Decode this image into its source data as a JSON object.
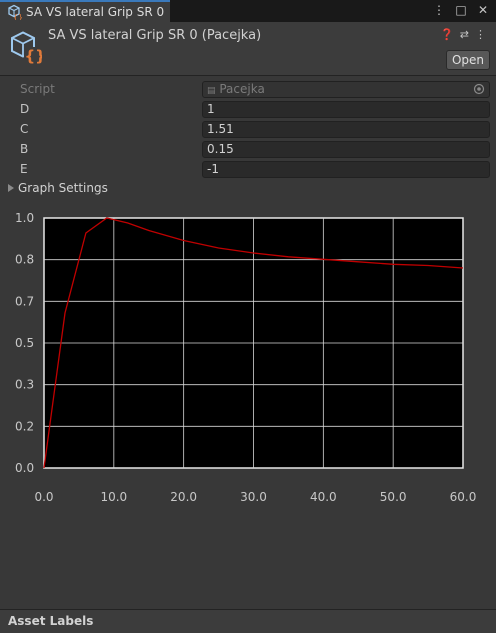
{
  "tab": {
    "title": "SA VS lateral Grip SR 0"
  },
  "header": {
    "title": "SA VS lateral Grip SR 0 (Pacejka)",
    "open_label": "Open"
  },
  "properties": [
    {
      "label": "Script",
      "value": "Pacejka",
      "readonly": true
    },
    {
      "label": "D",
      "value": "1"
    },
    {
      "label": "C",
      "value": "1.51"
    },
    {
      "label": "B",
      "value": "0.15"
    },
    {
      "label": "E",
      "value": "-1"
    }
  ],
  "graph_settings": {
    "label": "Graph Settings"
  },
  "chart_data": {
    "type": "line",
    "xlim": [
      0,
      60
    ],
    "ylim": [
      0,
      1
    ],
    "x_ticks": [
      "0.0",
      "10.0",
      "20.0",
      "30.0",
      "40.0",
      "50.0",
      "60.0"
    ],
    "y_ticks": [
      "0.0",
      "0.2",
      "0.3",
      "0.5",
      "0.7",
      "0.8",
      "1.0"
    ],
    "grid": true,
    "series": [
      {
        "color": "#c00000",
        "x": [
          0,
          3,
          6,
          9,
          12,
          15,
          20,
          25,
          30,
          35,
          40,
          45,
          50,
          55,
          60
        ],
        "y": [
          0,
          0.62,
          0.94,
          1.0,
          0.98,
          0.95,
          0.91,
          0.88,
          0.86,
          0.845,
          0.835,
          0.825,
          0.815,
          0.81,
          0.8
        ]
      }
    ]
  },
  "footer": {
    "label": "Asset Labels"
  }
}
